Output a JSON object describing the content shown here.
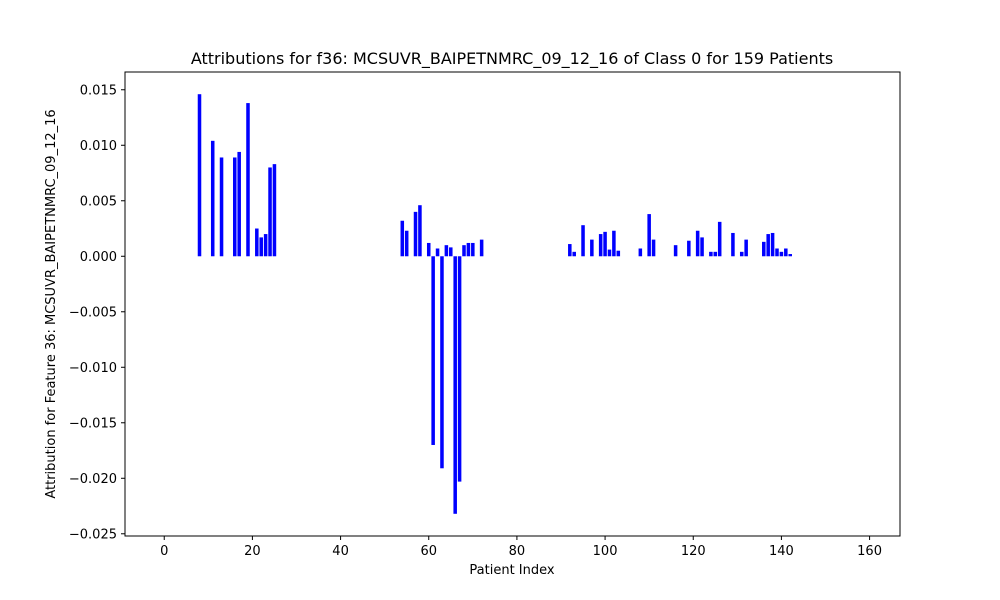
{
  "chart_data": {
    "type": "bar",
    "title": "Attributions for f36: MCSUVR_BAIPETNMRC_09_12_16 of Class 0 for 159 Patients",
    "xlabel": "Patient Index",
    "ylabel": "Attribution for Feature 36: MCSUVR_BAIPETNMRC_09_12_16",
    "xlim": [
      -8.9,
      166.9
    ],
    "ylim": [
      -0.0252,
      0.0166
    ],
    "xticks": [
      0,
      20,
      40,
      60,
      80,
      100,
      120,
      140,
      160
    ],
    "xtick_labels": [
      "0",
      "20",
      "40",
      "60",
      "80",
      "100",
      "120",
      "140",
      "160"
    ],
    "yticks": [
      -0.025,
      -0.02,
      -0.015,
      -0.01,
      -0.005,
      0.0,
      0.005,
      0.01,
      0.015
    ],
    "ytick_labels": [
      "−0.025",
      "−0.020",
      "−0.015",
      "−0.010",
      "−0.005",
      "0.000",
      "0.005",
      "0.010",
      "0.015"
    ],
    "bar_color": "#0000ff",
    "grid": false,
    "x": [
      8,
      11,
      13,
      16,
      17,
      19,
      21,
      22,
      23,
      24,
      25,
      54,
      55,
      57,
      58,
      60,
      61,
      62,
      63,
      64,
      65,
      66,
      67,
      68,
      69,
      70,
      72,
      92,
      93,
      95,
      97,
      99,
      100,
      101,
      102,
      103,
      108,
      110,
      111,
      116,
      119,
      121,
      122,
      124,
      125,
      126,
      129,
      131,
      132,
      136,
      137,
      138,
      139,
      140,
      141,
      142
    ],
    "values": [
      0.0146,
      0.0104,
      0.0089,
      0.0089,
      0.0094,
      0.0138,
      0.0025,
      0.0017,
      0.002,
      0.008,
      0.0083,
      0.0032,
      0.0023,
      0.004,
      0.0046,
      0.0012,
      -0.017,
      0.0007,
      -0.0191,
      0.001,
      0.0008,
      -0.0232,
      -0.0203,
      0.001,
      0.0012,
      0.0012,
      0.0015,
      0.0011,
      0.0004,
      0.0028,
      0.0015,
      0.002,
      0.0022,
      0.0006,
      0.0023,
      0.0005,
      0.0007,
      0.0038,
      0.0015,
      0.001,
      0.0014,
      0.0023,
      0.0017,
      0.0004,
      0.0004,
      0.0031,
      0.0021,
      0.0004,
      0.0015,
      0.0013,
      0.002,
      0.0021,
      0.0007,
      0.0004,
      0.0007,
      0.0002
    ]
  }
}
